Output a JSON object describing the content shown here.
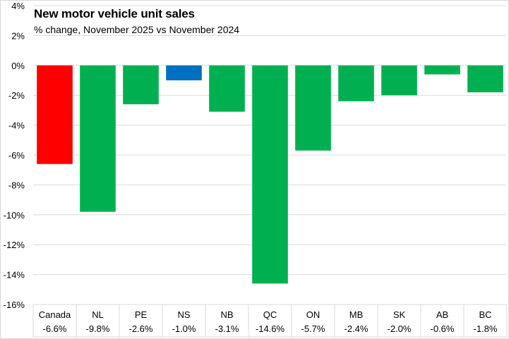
{
  "chart_data": {
    "type": "bar",
    "title": "New motor vehicle unit sales",
    "subtitle": "% change, November 2025 vs November 2024",
    "xlabel": "",
    "ylabel": "",
    "categories": [
      "Canada",
      "NL",
      "PE",
      "NS",
      "NB",
      "QC",
      "ON",
      "MB",
      "SK",
      "AB",
      "BC"
    ],
    "values": [
      -6.6,
      -9.8,
      -2.6,
      -1.0,
      -3.1,
      -14.6,
      -5.7,
      -2.4,
      -2.0,
      -0.6,
      -1.8
    ],
    "value_labels": [
      "-6.6%",
      "-9.8%",
      "-2.6%",
      "-1.0%",
      "-3.1%",
      "-14.6%",
      "-5.7%",
      "-2.4%",
      "-2.0%",
      "-0.6%",
      "-1.8%"
    ],
    "bar_colors": [
      "#ff0000",
      "#00b050",
      "#00b050",
      "#0070c0",
      "#00b050",
      "#00b050",
      "#00b050",
      "#00b050",
      "#00b050",
      "#00b050",
      "#00b050"
    ],
    "ylim": [
      -16,
      4
    ],
    "yticks": [
      4,
      2,
      0,
      -2,
      -4,
      -6,
      -8,
      -10,
      -12,
      -14,
      -16
    ],
    "ytick_labels": [
      "4%",
      "2%",
      "0%",
      "-2%",
      "-4%",
      "-6%",
      "-8%",
      "-10%",
      "-12%",
      "-14%",
      "-16%"
    ],
    "grid": true,
    "legend": "none",
    "data_table": true
  }
}
